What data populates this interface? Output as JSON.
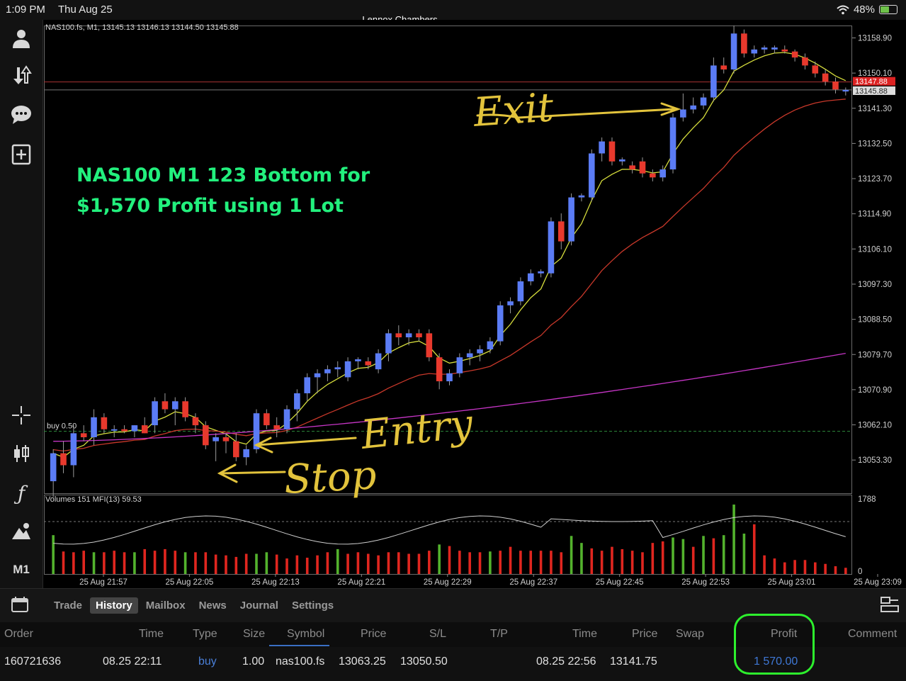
{
  "status_bar": {
    "time": "1:09 PM",
    "date": "Thu Aug 25",
    "center_title": "Lennox Chambers",
    "battery": "48%",
    "battery_level": 0.48,
    "icons": [
      "wifi-icon",
      "battery-charging-icon"
    ]
  },
  "sidebar": {
    "items": [
      {
        "name": "account-icon",
        "glyph": "👤"
      },
      {
        "name": "trade-transfer-icon",
        "glyph": "⇅"
      },
      {
        "name": "chat-icon",
        "glyph": "💬"
      },
      {
        "name": "new-order-icon",
        "glyph": "⊞"
      },
      {
        "name": "crosshair-icon",
        "glyph": "✛"
      },
      {
        "name": "candlestick-type-icon",
        "glyph": "⫿"
      },
      {
        "name": "indicators-icon",
        "glyph": "ƒ"
      },
      {
        "name": "objects-icon",
        "glyph": "⛰"
      }
    ],
    "timeframe": "M1"
  },
  "chart": {
    "info_line": "NAS100.fs, M1, 13145.13 13146.13 13144.50 13145.88",
    "buy_label": "buy 0.50",
    "volume_info": "Volumes 151 MFI(13) 59.53",
    "volume_max_label": "1788",
    "volume_zero_label": "0",
    "bid_price_label": "13147.88",
    "ask_price_label": "13145.88",
    "overlay_title": [
      "NAS100 M1 123 Bottom for",
      "$1,570 Profit using 1 Lot"
    ],
    "handwritten": [
      "Exit",
      "Entry",
      "Stop"
    ],
    "colors": {
      "bull": "#5b7cf5",
      "bear": "#e8392d",
      "ma_fast": "#d6dd3c",
      "ma_mid": "#c8382a",
      "ma_slow": "#c635c6",
      "vol_up": "#53b22d",
      "vol_down": "#e0261f",
      "annotation": "#e2c33c",
      "overlay_text": "#22f07d"
    }
  },
  "chart_data": {
    "type": "candlestick",
    "symbol": "NAS100.fs",
    "timeframe": "M1",
    "y_ticks": [
      "13158.90",
      "13150.10",
      "13141.30",
      "13132.50",
      "13123.70",
      "13114.90",
      "13106.10",
      "13097.30",
      "13088.50",
      "13079.70",
      "13070.90",
      "13062.10",
      "13053.30"
    ],
    "x_ticks": [
      "25 Aug 21:57",
      "25 Aug 22:05",
      "25 Aug 22:13",
      "25 Aug 22:21",
      "25 Aug 22:29",
      "25 Aug 22:37",
      "25 Aug 22:45",
      "25 Aug 22:53",
      "25 Aug 23:01",
      "25 Aug 23:09"
    ],
    "ylim": [
      13045,
      13162
    ],
    "buy_level": 13060.5,
    "candles": [
      {
        "o": 13048.0,
        "h": 13056.0,
        "l": 13044.0,
        "c": 13055.0
      },
      {
        "o": 13055.0,
        "h": 13058.0,
        "l": 13050.0,
        "c": 13052.0
      },
      {
        "o": 13052.0,
        "h": 13062.0,
        "l": 13049.0,
        "c": 13060.0
      },
      {
        "o": 13060.0,
        "h": 13062.0,
        "l": 13058.0,
        "c": 13059.0
      },
      {
        "o": 13059.0,
        "h": 13066.0,
        "l": 13057.0,
        "c": 13064.0
      },
      {
        "o": 13064.0,
        "h": 13065.0,
        "l": 13060.0,
        "c": 13061.0
      },
      {
        "o": 13061.0,
        "h": 13062.0,
        "l": 13059.0,
        "c": 13061.0
      },
      {
        "o": 13061.0,
        "h": 13062.0,
        "l": 13060.0,
        "c": 13060.5
      },
      {
        "o": 13060.5,
        "h": 13062.0,
        "l": 13059.0,
        "c": 13062.0
      },
      {
        "o": 13062.0,
        "h": 13064.0,
        "l": 13060.0,
        "c": 13060.0
      },
      {
        "o": 13062.0,
        "h": 13069.0,
        "l": 13060.0,
        "c": 13068.0
      },
      {
        "o": 13068.0,
        "h": 13070.0,
        "l": 13065.0,
        "c": 13066.0
      },
      {
        "o": 13066.0,
        "h": 13069.0,
        "l": 13062.0,
        "c": 13068.0
      },
      {
        "o": 13068.0,
        "h": 13069.0,
        "l": 13063.0,
        "c": 13064.0
      },
      {
        "o": 13064.0,
        "h": 13065.0,
        "l": 13060.0,
        "c": 13062.0
      },
      {
        "o": 13062.0,
        "h": 13063.0,
        "l": 13056.0,
        "c": 13057.0
      },
      {
        "o": 13058.0,
        "h": 13060.0,
        "l": 13053.0,
        "c": 13059.0
      },
      {
        "o": 13059.0,
        "h": 13060.0,
        "l": 13055.0,
        "c": 13058.0
      },
      {
        "o": 13058.0,
        "h": 13060.0,
        "l": 13053.0,
        "c": 13054.0
      },
      {
        "o": 13054.0,
        "h": 13057.0,
        "l": 13052.0,
        "c": 13056.0
      },
      {
        "o": 13056.0,
        "h": 13066.0,
        "l": 13055.0,
        "c": 13065.0
      },
      {
        "o": 13065.0,
        "h": 13066.0,
        "l": 13061.0,
        "c": 13062.0
      },
      {
        "o": 13062.0,
        "h": 13064.0,
        "l": 13059.0,
        "c": 13061.0
      },
      {
        "o": 13061.0,
        "h": 13067.0,
        "l": 13060.0,
        "c": 13066.0
      },
      {
        "o": 13066.0,
        "h": 13071.0,
        "l": 13063.0,
        "c": 13070.0
      },
      {
        "o": 13070.0,
        "h": 13075.0,
        "l": 13068.0,
        "c": 13074.0
      },
      {
        "o": 13074.0,
        "h": 13076.0,
        "l": 13070.0,
        "c": 13075.0
      },
      {
        "o": 13075.0,
        "h": 13077.0,
        "l": 13073.0,
        "c": 13076.0
      },
      {
        "o": 13076.0,
        "h": 13078.0,
        "l": 13074.0,
        "c": 13076.5
      },
      {
        "o": 13074.0,
        "h": 13079.0,
        "l": 13073.0,
        "c": 13078.0
      },
      {
        "o": 13078.0,
        "h": 13079.0,
        "l": 13076.0,
        "c": 13078.5
      },
      {
        "o": 13078.0,
        "h": 13079.0,
        "l": 13076.0,
        "c": 13077.0
      },
      {
        "o": 13076.0,
        "h": 13081.0,
        "l": 13075.0,
        "c": 13080.0
      },
      {
        "o": 13080.0,
        "h": 13086.0,
        "l": 13078.0,
        "c": 13085.0
      },
      {
        "o": 13085.0,
        "h": 13087.0,
        "l": 13082.0,
        "c": 13084.0
      },
      {
        "o": 13084.0,
        "h": 13086.0,
        "l": 13082.0,
        "c": 13085.0
      },
      {
        "o": 13085.0,
        "h": 13086.0,
        "l": 13083.0,
        "c": 13084.0
      },
      {
        "o": 13085.0,
        "h": 13086.0,
        "l": 13078.0,
        "c": 13079.0
      },
      {
        "o": 13079.0,
        "h": 13080.0,
        "l": 13071.0,
        "c": 13073.0
      },
      {
        "o": 13073.0,
        "h": 13076.0,
        "l": 13072.0,
        "c": 13075.0
      },
      {
        "o": 13075.0,
        "h": 13080.0,
        "l": 13074.0,
        "c": 13079.0
      },
      {
        "o": 13079.0,
        "h": 13081.0,
        "l": 13077.0,
        "c": 13080.0
      },
      {
        "o": 13080.0,
        "h": 13082.0,
        "l": 13078.0,
        "c": 13081.0
      },
      {
        "o": 13081.0,
        "h": 13084.0,
        "l": 13080.0,
        "c": 13083.0
      },
      {
        "o": 13083.0,
        "h": 13093.0,
        "l": 13082.0,
        "c": 13092.0
      },
      {
        "o": 13092.0,
        "h": 13094.0,
        "l": 13090.0,
        "c": 13093.0
      },
      {
        "o": 13093.0,
        "h": 13099.0,
        "l": 13092.0,
        "c": 13098.0
      },
      {
        "o": 13098.0,
        "h": 13101.0,
        "l": 13097.0,
        "c": 13100.0
      },
      {
        "o": 13100.0,
        "h": 13101.0,
        "l": 13099.0,
        "c": 13100.5
      },
      {
        "o": 13100.0,
        "h": 13114.0,
        "l": 13099.0,
        "c": 13113.0
      },
      {
        "o": 13113.0,
        "h": 13115.0,
        "l": 13106.0,
        "c": 13108.0
      },
      {
        "o": 13108.0,
        "h": 13120.0,
        "l": 13107.0,
        "c": 13119.0
      },
      {
        "o": 13119.0,
        "h": 13120.0,
        "l": 13118.0,
        "c": 13119.5
      },
      {
        "o": 13119.0,
        "h": 13131.0,
        "l": 13118.0,
        "c": 13130.0
      },
      {
        "o": 13130.0,
        "h": 13134.0,
        "l": 13128.0,
        "c": 13133.0
      },
      {
        "o": 13133.0,
        "h": 13134.0,
        "l": 13127.0,
        "c": 13128.0
      },
      {
        "o": 13128.0,
        "h": 13129.0,
        "l": 13127.0,
        "c": 13128.5
      },
      {
        "o": 13127.0,
        "h": 13128.0,
        "l": 13125.0,
        "c": 13126.0
      },
      {
        "o": 13128.0,
        "h": 13129.0,
        "l": 13124.0,
        "c": 13125.0
      },
      {
        "o": 13125.0,
        "h": 13126.0,
        "l": 13123.0,
        "c": 13124.0
      },
      {
        "o": 13124.0,
        "h": 13127.0,
        "l": 13123.0,
        "c": 13126.0
      },
      {
        "o": 13126.0,
        "h": 13140.0,
        "l": 13125.0,
        "c": 13139.0
      },
      {
        "o": 13139.0,
        "h": 13145.0,
        "l": 13138.0,
        "c": 13141.0
      },
      {
        "o": 13141.0,
        "h": 13144.0,
        "l": 13140.0,
        "c": 13142.0
      },
      {
        "o": 13142.0,
        "h": 13145.0,
        "l": 13141.0,
        "c": 13144.0
      },
      {
        "o": 13144.0,
        "h": 13154.0,
        "l": 13143.0,
        "c": 13152.0
      },
      {
        "o": 13152.0,
        "h": 13154.0,
        "l": 13150.0,
        "c": 13151.0
      },
      {
        "o": 13151.0,
        "h": 13162.0,
        "l": 13150.0,
        "c": 13160.0
      },
      {
        "o": 13160.0,
        "h": 13161.0,
        "l": 13154.0,
        "c": 13155.0
      },
      {
        "o": 13155.0,
        "h": 13157.0,
        "l": 13154.0,
        "c": 13156.0
      },
      {
        "o": 13156.0,
        "h": 13157.0,
        "l": 13155.0,
        "c": 13156.5
      },
      {
        "o": 13156.0,
        "h": 13157.0,
        "l": 13155.0,
        "c": 13156.5
      },
      {
        "o": 13156.0,
        "h": 13157.0,
        "l": 13155.0,
        "c": 13155.5
      },
      {
        "o": 13155.5,
        "h": 13156.0,
        "l": 13153.0,
        "c": 13154.0
      },
      {
        "o": 13154.0,
        "h": 13155.0,
        "l": 13151.0,
        "c": 13152.0
      },
      {
        "o": 13152.0,
        "h": 13153.0,
        "l": 13149.0,
        "c": 13150.0
      },
      {
        "o": 13150.0,
        "h": 13151.0,
        "l": 13147.0,
        "c": 13148.0
      },
      {
        "o": 13148.0,
        "h": 13149.0,
        "l": 13145.0,
        "c": 13146.0
      },
      {
        "o": 13145.5,
        "h": 13146.5,
        "l": 13144.5,
        "c": 13145.9
      }
    ],
    "volumes": [
      {
        "v": 1000,
        "up": true
      },
      {
        "v": 580,
        "up": false
      },
      {
        "v": 560,
        "up": false
      },
      {
        "v": 600,
        "up": false
      },
      {
        "v": 560,
        "up": true
      },
      {
        "v": 560,
        "up": false
      },
      {
        "v": 600,
        "up": false
      },
      {
        "v": 560,
        "up": false
      },
      {
        "v": 560,
        "up": true
      },
      {
        "v": 640,
        "up": false
      },
      {
        "v": 600,
        "up": false
      },
      {
        "v": 640,
        "up": false
      },
      {
        "v": 600,
        "up": false
      },
      {
        "v": 560,
        "up": true
      },
      {
        "v": 560,
        "up": false
      },
      {
        "v": 560,
        "up": false
      },
      {
        "v": 500,
        "up": false
      },
      {
        "v": 480,
        "up": false
      },
      {
        "v": 440,
        "up": false
      },
      {
        "v": 520,
        "up": false
      },
      {
        "v": 520,
        "up": true
      },
      {
        "v": 560,
        "up": true
      },
      {
        "v": 500,
        "up": false
      },
      {
        "v": 400,
        "up": false
      },
      {
        "v": 480,
        "up": false
      },
      {
        "v": 420,
        "up": false
      },
      {
        "v": 480,
        "up": false
      },
      {
        "v": 560,
        "up": false
      },
      {
        "v": 640,
        "up": true
      },
      {
        "v": 520,
        "up": false
      },
      {
        "v": 560,
        "up": false
      },
      {
        "v": 520,
        "up": false
      },
      {
        "v": 480,
        "up": false
      },
      {
        "v": 560,
        "up": false
      },
      {
        "v": 560,
        "up": false
      },
      {
        "v": 520,
        "up": false
      },
      {
        "v": 520,
        "up": false
      },
      {
        "v": 600,
        "up": false
      },
      {
        "v": 760,
        "up": true
      },
      {
        "v": 720,
        "up": false
      },
      {
        "v": 600,
        "up": false
      },
      {
        "v": 560,
        "up": false
      },
      {
        "v": 560,
        "up": false
      },
      {
        "v": 580,
        "up": true
      },
      {
        "v": 600,
        "up": false
      },
      {
        "v": 700,
        "up": false
      },
      {
        "v": 600,
        "up": false
      },
      {
        "v": 600,
        "up": false
      },
      {
        "v": 600,
        "up": false
      },
      {
        "v": 600,
        "up": false
      },
      {
        "v": 560,
        "up": false
      },
      {
        "v": 980,
        "up": true
      },
      {
        "v": 800,
        "up": true
      },
      {
        "v": 660,
        "up": false
      },
      {
        "v": 600,
        "up": false
      },
      {
        "v": 700,
        "up": false
      },
      {
        "v": 640,
        "up": false
      },
      {
        "v": 600,
        "up": false
      },
      {
        "v": 560,
        "up": false
      },
      {
        "v": 800,
        "up": false
      },
      {
        "v": 840,
        "up": false
      },
      {
        "v": 940,
        "up": true
      },
      {
        "v": 900,
        "up": true
      },
      {
        "v": 700,
        "up": false
      },
      {
        "v": 980,
        "up": true
      },
      {
        "v": 920,
        "up": false
      },
      {
        "v": 1000,
        "up": true
      },
      {
        "v": 1788,
        "up": true
      },
      {
        "v": 1040,
        "up": true
      },
      {
        "v": 1280,
        "up": false
      },
      {
        "v": 480,
        "up": false
      },
      {
        "v": 400,
        "up": false
      },
      {
        "v": 300,
        "up": false
      },
      {
        "v": 360,
        "up": false
      },
      {
        "v": 360,
        "up": false
      },
      {
        "v": 300,
        "up": false
      },
      {
        "v": 260,
        "up": false
      },
      {
        "v": 200,
        "up": false
      },
      {
        "v": 160,
        "up": false
      }
    ]
  },
  "toolbar": {
    "tabs": [
      {
        "label": "Trade",
        "active": false
      },
      {
        "label": "History",
        "active": true
      },
      {
        "label": "Mailbox",
        "active": false
      },
      {
        "label": "News",
        "active": false
      },
      {
        "label": "Journal",
        "active": false
      },
      {
        "label": "Settings",
        "active": false
      }
    ]
  },
  "history_table": {
    "headers": [
      "Order",
      "Time",
      "Type",
      "Size",
      "Symbol",
      "Price",
      "S/L",
      "T/P",
      "Time",
      "Price",
      "Swap",
      "Profit",
      "Comment"
    ],
    "row": {
      "order": "160721636",
      "open_time": "08.25 22:11",
      "type": "buy",
      "size": "1.00",
      "symbol": "nas100.fs",
      "open_price": "13063.25",
      "sl": "13050.50",
      "tp": "",
      "close_time": "08.25 22:56",
      "close_price": "13141.75",
      "swap": "",
      "profit": "1 570.00",
      "comment": ""
    }
  }
}
